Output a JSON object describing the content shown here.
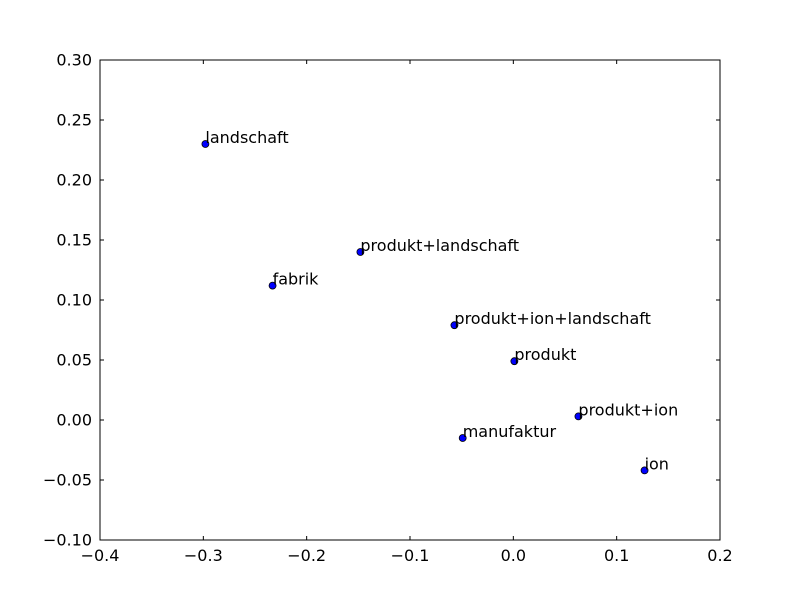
{
  "chart_data": {
    "type": "scatter",
    "title": "",
    "xlabel": "",
    "ylabel": "",
    "xlim": [
      -0.4,
      0.2
    ],
    "ylim": [
      -0.1,
      0.3
    ],
    "grid": false,
    "legend": "none",
    "x_ticks": [
      -0.4,
      -0.3,
      -0.2,
      -0.1,
      0.0,
      0.1,
      0.2
    ],
    "x_tick_labels": [
      "−0.4",
      "−0.3",
      "−0.2",
      "−0.1",
      "0.0",
      "0.1",
      "0.2"
    ],
    "y_ticks": [
      -0.1,
      -0.05,
      0.0,
      0.05,
      0.1,
      0.15,
      0.2,
      0.25,
      0.3
    ],
    "y_tick_labels": [
      "−0.10",
      "−0.05",
      "0.00",
      "0.05",
      "0.10",
      "0.15",
      "0.20",
      "0.25",
      "0.30"
    ],
    "marker_color": "#0000ff",
    "points": [
      {
        "label": "landschaft",
        "x": -0.298,
        "y": 0.23
      },
      {
        "label": "produkt+landschaft",
        "x": -0.148,
        "y": 0.14
      },
      {
        "label": "fabrik",
        "x": -0.233,
        "y": 0.112
      },
      {
        "label": "produkt+ion+landschaft",
        "x": -0.057,
        "y": 0.079
      },
      {
        "label": "produkt",
        "x": 0.001,
        "y": 0.049
      },
      {
        "label": "produkt+ion",
        "x": 0.063,
        "y": 0.003
      },
      {
        "label": "manufaktur",
        "x": -0.049,
        "y": -0.015
      },
      {
        "label": "ion",
        "x": 0.127,
        "y": -0.042
      }
    ]
  }
}
